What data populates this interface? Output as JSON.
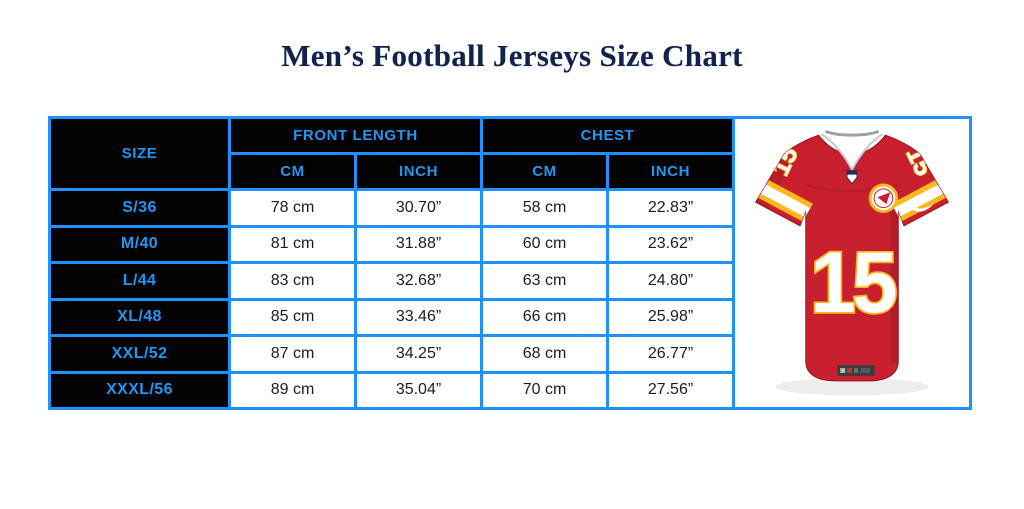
{
  "colors": {
    "accent_blue": "#1E90FF",
    "header_text": "#2196F3",
    "title_navy": "#13214D",
    "jersey_red": "#C8202F",
    "jersey_red_dark": "#A31325",
    "jersey_gold": "#FFB81C"
  },
  "page": {
    "title": "Men’s Football Jerseys Size Chart"
  },
  "table": {
    "size_header": "SIZE",
    "group_headers": {
      "front_length": "FRONT LENGTH",
      "chest": "CHEST"
    },
    "sub_headers": {
      "front_cm": "CM",
      "front_inch": "INCH",
      "chest_cm": "CM",
      "chest_inch": "INCH"
    },
    "rows": [
      {
        "size": "S/36",
        "front_cm": "78 cm",
        "front_inch": "30.70”",
        "chest_cm": "58 cm",
        "chest_inch": "22.83”"
      },
      {
        "size": "M/40",
        "front_cm": "81 cm",
        "front_inch": "31.88”",
        "chest_cm": "60 cm",
        "chest_inch": "23.62”"
      },
      {
        "size": "L/44",
        "front_cm": "83 cm",
        "front_inch": "32.68”",
        "chest_cm": "63 cm",
        "chest_inch": "24.80”"
      },
      {
        "size": "XL/48",
        "front_cm": "85 cm",
        "front_inch": "33.46”",
        "chest_cm": "66 cm",
        "chest_inch": "25.98”"
      },
      {
        "size": "XXL/52",
        "front_cm": "87 cm",
        "front_inch": "34.25”",
        "chest_cm": "68 cm",
        "chest_inch": "26.77”"
      },
      {
        "size": "XXXL/56",
        "front_cm": "89 cm",
        "front_inch": "35.04”",
        "chest_cm": "70 cm",
        "chest_inch": "27.56”"
      }
    ]
  },
  "jersey": {
    "number": "15"
  },
  "chart_data": {
    "type": "table",
    "title": "Men’s Football Jerseys Size Chart",
    "columns": [
      "SIZE",
      "FRONT LENGTH CM",
      "FRONT LENGTH INCH",
      "CHEST CM",
      "CHEST INCH"
    ],
    "rows": [
      [
        "S/36",
        "78 cm",
        "30.70”",
        "58 cm",
        "22.83”"
      ],
      [
        "M/40",
        "81 cm",
        "31.88”",
        "60 cm",
        "23.62”"
      ],
      [
        "L/44",
        "83 cm",
        "32.68”",
        "63 cm",
        "24.80”"
      ],
      [
        "XL/48",
        "85 cm",
        "33.46”",
        "66 cm",
        "25.98”"
      ],
      [
        "XXL/52",
        "87 cm",
        "34.25”",
        "68 cm",
        "26.77”"
      ],
      [
        "XXXL/56",
        "89 cm",
        "35.04”",
        "70 cm",
        "27.56”"
      ]
    ]
  }
}
